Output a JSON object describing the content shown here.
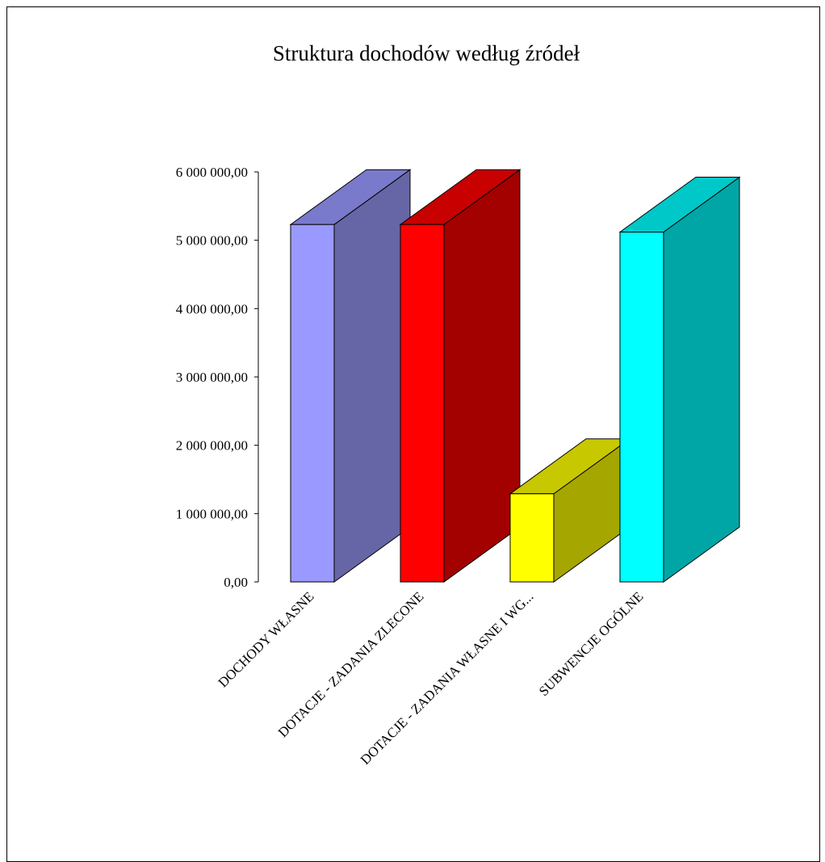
{
  "chart_data": {
    "type": "bar",
    "title": "Struktura dochodów według źródeł",
    "xlabel": "",
    "ylabel": "",
    "ylim": [
      0,
      6000000
    ],
    "y_ticks": [
      0,
      1000000,
      2000000,
      3000000,
      4000000,
      5000000,
      6000000
    ],
    "y_tick_labels": [
      "0,00",
      "1 000 000,00",
      "2 000 000,00",
      "3 000 000,00",
      "4 000 000,00",
      "5 000 000,00",
      "6 000 000,00"
    ],
    "categories": [
      "DOCHODY WŁASNE",
      "DOTACJE - ZADANIA ZLECONE",
      "DOTACJE - ZADANIA WŁASNE I WG...",
      "SUBWENCJE OGÓLNE"
    ],
    "values": [
      5230000,
      5230000,
      1290000,
      5120000
    ],
    "bar_colors": [
      {
        "front": "#9999ff",
        "side": "#6666a6",
        "top": "#7a7acc"
      },
      {
        "front": "#ff0000",
        "side": "#a30000",
        "top": "#c80000"
      },
      {
        "front": "#ffff00",
        "side": "#a6a600",
        "top": "#c8c800"
      },
      {
        "front": "#00ffff",
        "side": "#00a6a6",
        "top": "#00c8c8"
      }
    ],
    "grid": false,
    "legend": "none",
    "style": "3d-column"
  }
}
